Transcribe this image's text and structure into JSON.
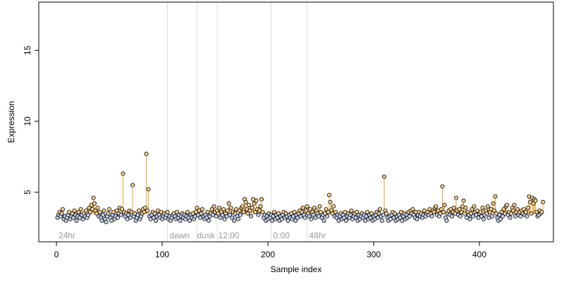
{
  "chart_data": {
    "type": "scatter",
    "xlabel": "Sample index",
    "ylabel": "Expression",
    "xlim": [
      -16.7,
      470
    ],
    "ylim": [
      1.5,
      18.4
    ],
    "xticks": [
      0,
      100,
      200,
      300,
      400
    ],
    "yticks": [
      5,
      10,
      15
    ],
    "baseline": 3.45,
    "above_color": "#f0a030",
    "below_color": "#8fa8d8",
    "above_fill": "#f8cf95",
    "below_fill": "#c6d3ee",
    "point_edge": "#000000",
    "vline_color": "#dddddd",
    "vlines": [
      105,
      133,
      152,
      203,
      237
    ],
    "annotations": [
      {
        "text": "24hr",
        "x": 2
      },
      {
        "text": "dawn",
        "x": 107
      },
      {
        "text": "dusk",
        "x": 133
      },
      {
        "text": "12:00",
        "x": 153
      },
      {
        "text": "0:00",
        "x": 205
      },
      {
        "text": "48hr",
        "x": 239
      }
    ],
    "values": [
      3.2,
      3.4,
      3.6,
      3.3,
      3.5,
      3.8,
      3.1,
      3.3,
      3.0,
      3.2,
      3.4,
      3.6,
      3.1,
      3.3,
      3.5,
      3.2,
      3.7,
      3.4,
      3.0,
      3.3,
      3.6,
      3.2,
      3.8,
      3.4,
      3.1,
      3.5,
      3.3,
      3.7,
      3.2,
      3.4,
      3.9,
      3.6,
      4.1,
      3.8,
      4.6,
      4.2,
      3.7,
      3.5,
      3.9,
      3.3,
      3.6,
      3.2,
      3.0,
      3.4,
      3.7,
      3.1,
      2.9,
      3.3,
      3.5,
      3.8,
      3.2,
      3.0,
      3.4,
      3.6,
      3.1,
      3.3,
      3.7,
      3.2,
      3.5,
      3.9,
      3.4,
      3.8,
      6.3,
      3.6,
      3.3,
      3.5,
      3.1,
      3.4,
      3.7,
      3.2,
      3.6,
      5.5,
      3.3,
      3.5,
      3.0,
      3.2,
      3.4,
      3.7,
      3.1,
      3.3,
      3.5,
      3.8,
      3.6,
      3.9,
      7.7,
      3.7,
      5.2,
      3.3,
      3.1,
      3.4,
      3.6,
      3.2,
      3.5,
      3.0,
      3.3,
      3.7,
      3.4,
      3.2,
      3.6,
      3.1,
      3.3,
      3.5,
      3.2,
      3.4,
      3.6,
      3.1,
      3.3,
      3.0,
      3.2,
      3.4,
      3.5,
      3.3,
      3.1,
      3.6,
      3.2,
      3.4,
      3.0,
      3.3,
      3.5,
      3.2,
      3.4,
      3.1,
      3.3,
      3.6,
      3.2,
      3.0,
      3.4,
      3.2,
      3.5,
      3.1,
      3.3,
      3.6,
      3.9,
      3.4,
      3.7,
      3.2,
      3.5,
      3.8,
      3.3,
      3.1,
      3.4,
      3.2,
      3.6,
      3.0,
      3.3,
      3.5,
      3.8,
      3.4,
      4.0,
      3.6,
      3.3,
      3.7,
      3.5,
      3.9,
      3.2,
      3.6,
      3.4,
      3.8,
      3.1,
      3.5,
      3.3,
      3.7,
      4.2,
      3.4,
      3.9,
      3.2,
      3.6,
      3.0,
      3.5,
      3.8,
      3.3,
      3.1,
      3.7,
      3.4,
      3.9,
      4.0,
      3.6,
      4.5,
      4.3,
      3.8,
      3.5,
      4.1,
      3.7,
      3.3,
      3.9,
      4.5,
      4.2,
      3.6,
      4.4,
      3.8,
      3.4,
      3.7,
      4.0,
      4.5,
      3.6,
      3.2,
      3.4,
      3.0,
      3.3,
      3.1,
      3.5,
      3.2,
      3.4,
      3.0,
      3.3,
      3.6,
      3.1,
      3.4,
      3.2,
      3.5,
      3.0,
      3.3,
      3.1,
      3.4,
      3.6,
      3.2,
      3.5,
      3.3,
      3.0,
      3.4,
      3.2,
      3.5,
      3.1,
      3.3,
      3.6,
      3.0,
      3.4,
      3.2,
      3.5,
      3.7,
      3.3,
      3.6,
      3.9,
      3.4,
      3.2,
      3.7,
      4.0,
      3.5,
      3.3,
      3.8,
      3.1,
      3.6,
      3.4,
      3.9,
      3.2,
      3.7,
      3.5,
      3.3,
      4.0,
      3.6,
      3.2,
      3.4,
      3.0,
      3.5,
      3.8,
      3.3,
      3.6,
      4.8,
      4.3,
      3.7,
      3.5,
      4.0,
      3.3,
      3.6,
      3.2,
      3.4,
      3.0,
      3.3,
      3.5,
      3.1,
      3.4,
      3.2,
      3.6,
      3.0,
      3.3,
      3.5,
      3.2,
      3.4,
      3.7,
      3.1,
      3.3,
      3.5,
      3.2,
      3.6,
      3.0,
      3.4,
      3.1,
      3.3,
      3.5,
      3.2,
      3.4,
      3.0,
      3.3,
      3.6,
      3.1,
      3.4,
      3.2,
      3.5,
      3.0,
      3.3,
      3.1,
      3.4,
      3.6,
      3.2,
      3.5,
      3.8,
      3.3,
      3.0,
      3.4,
      6.1,
      3.7,
      3.5,
      3.2,
      3.0,
      3.3,
      3.1,
      3.4,
      3.6,
      3.2,
      3.5,
      3.0,
      3.3,
      3.1,
      3.4,
      3.2,
      3.6,
      3.0,
      3.3,
      3.5,
      3.1,
      3.4,
      3.2,
      3.6,
      3.3,
      3.7,
      3.5,
      3.8,
      3.4,
      3.2,
      3.6,
      3.1,
      3.4,
      3.6,
      3.3,
      3.5,
      3.2,
      3.4,
      3.7,
      3.3,
      3.5,
      3.6,
      3.4,
      3.8,
      3.5,
      3.3,
      3.7,
      3.6,
      3.9,
      4.0,
      3.4,
      3.7,
      3.3,
      3.5,
      3.8,
      5.4,
      3.6,
      4.1,
      3.2,
      3.0,
      3.5,
      3.7,
      3.4,
      3.8,
      3.3,
      3.6,
      3.9,
      3.5,
      4.6,
      3.7,
      3.4,
      3.8,
      3.3,
      3.6,
      4.0,
      4.4,
      3.5,
      3.9,
      3.2,
      3.6,
      3.4,
      3.1,
      3.5,
      3.8,
      3.3,
      4.0,
      3.6,
      3.4,
      3.7,
      3.2,
      3.5,
      3.6,
      3.3,
      3.9,
      3.1,
      3.4,
      3.7,
      3.5,
      4.0,
      3.2,
      3.6,
      3.8,
      3.3,
      4.2,
      3.7,
      4.7,
      3.5,
      3.2,
      3.0,
      3.4,
      3.1,
      3.6,
      3.3,
      3.8,
      3.5,
      4.0,
      4.1,
      3.4,
      3.6,
      3.2,
      3.5,
      3.9,
      3.7,
      4.1,
      3.3,
      3.6,
      3.8,
      3.4,
      3.6,
      3.3,
      3.7,
      3.5,
      3.8,
      3.4,
      3.6,
      3.3,
      3.9,
      4.7,
      4.3,
      3.5,
      4.6,
      4.2,
      4.5,
      4.4,
      3.6,
      3.3,
      3.4,
      3.7,
      3.5,
      3.6,
      4.3
    ]
  }
}
